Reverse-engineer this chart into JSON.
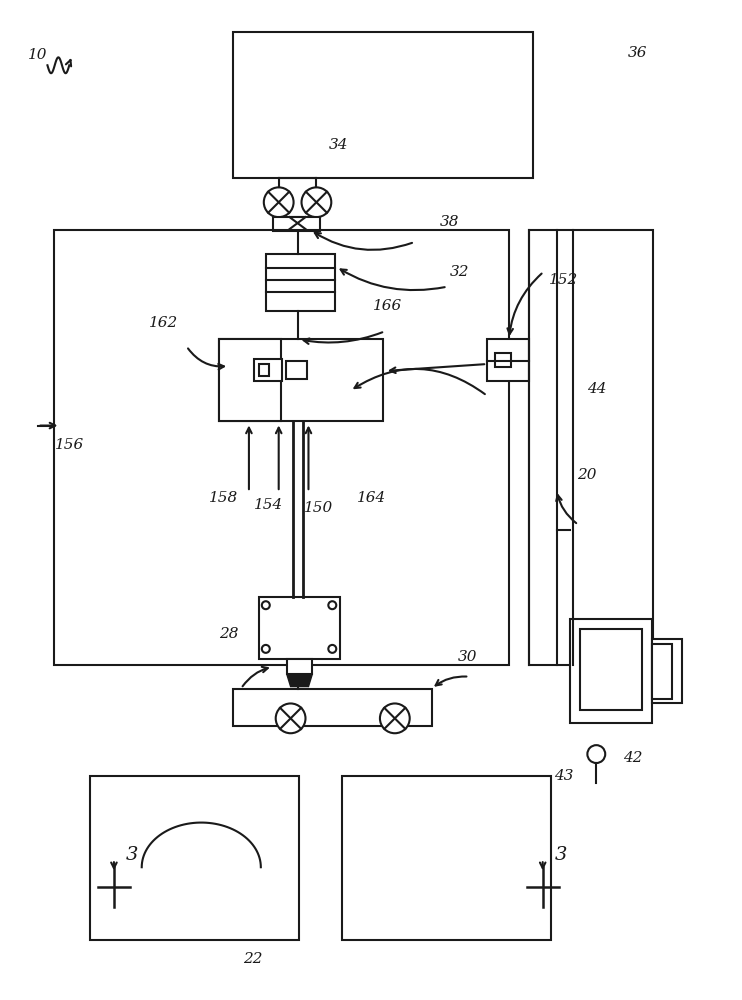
{
  "bg_color": "#ffffff",
  "line_color": "#1a1a1a",
  "lw": 1.5,
  "fig_width": 7.42,
  "fig_height": 10.0
}
